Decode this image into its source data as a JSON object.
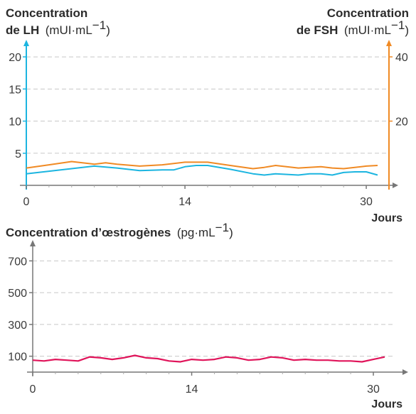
{
  "chart_data": [
    {
      "type": "line",
      "title_left_bold_1": "Concentration",
      "title_left_bold_2": "de LH",
      "title_left_unit": "(mUI·mL",
      "title_left_sup": "−1",
      "title_right_bold_1": "Concentration",
      "title_right_bold_2": "de FSH",
      "title_right_unit": "(mUI·mL",
      "title_right_sup": "−1",
      "xlabel": "Jours",
      "xlim": [
        0,
        31
      ],
      "x_ticks": [
        0,
        14,
        30
      ],
      "y_left_ticks": [
        5,
        10,
        15,
        20
      ],
      "y_left_range": [
        0,
        22
      ],
      "y_right_ticks": [
        20,
        40
      ],
      "y_right_range": [
        0,
        44
      ],
      "gridlines": [
        5,
        10,
        15,
        20
      ],
      "axis_colors": {
        "left": "#1cb5e0",
        "right": "#f08a24"
      },
      "series": [
        {
          "axis": "left",
          "color": "#1cb5e0",
          "x": [
            0,
            2,
            4,
            6,
            8,
            10,
            12,
            13,
            14,
            15,
            16,
            18,
            20,
            21,
            22,
            24,
            25,
            26,
            27,
            28,
            29,
            30,
            31
          ],
          "y": [
            1.8,
            2.2,
            2.6,
            3.0,
            2.7,
            2.3,
            2.4,
            2.4,
            2.9,
            3.1,
            3.1,
            2.5,
            1.8,
            1.6,
            1.8,
            1.6,
            1.8,
            1.8,
            1.6,
            2.0,
            2.1,
            2.1,
            1.6
          ]
        },
        {
          "axis": "right",
          "color": "#f08a24",
          "x": [
            0,
            2,
            4,
            6,
            7,
            8,
            10,
            12,
            14,
            16,
            18,
            20,
            21,
            22,
            24,
            26,
            27,
            28,
            30,
            31
          ],
          "y": [
            5.4,
            6.4,
            7.4,
            6.6,
            7.0,
            6.6,
            6.0,
            6.4,
            7.2,
            7.2,
            6.2,
            5.2,
            5.6,
            6.2,
            5.4,
            5.8,
            5.4,
            5.2,
            6.0,
            6.2
          ]
        }
      ]
    },
    {
      "type": "line",
      "title_bold": "Concentration d’œstrogènes",
      "title_unit": "(pg·mL",
      "title_sup": "−1",
      "xlabel": "Jours",
      "xlim": [
        0,
        31
      ],
      "x_ticks": [
        0,
        14,
        30
      ],
      "y_ticks": [
        100,
        300,
        500,
        700
      ],
      "y_range": [
        0,
        800
      ],
      "gridlines": [
        100,
        300,
        500,
        700
      ],
      "series": [
        {
          "color": "#e0145a",
          "x": [
            0,
            1,
            2,
            3,
            4,
            5,
            6,
            7,
            8,
            9,
            10,
            11,
            12,
            13,
            14,
            15,
            16,
            17,
            18,
            19,
            20,
            21,
            22,
            23,
            24,
            25,
            26,
            27,
            28,
            29,
            30,
            31
          ],
          "y": [
            75,
            70,
            80,
            75,
            70,
            95,
            90,
            80,
            90,
            105,
            90,
            85,
            70,
            65,
            80,
            75,
            80,
            95,
            90,
            75,
            80,
            95,
            90,
            75,
            80,
            75,
            75,
            70,
            70,
            65,
            80,
            95
          ]
        }
      ]
    }
  ]
}
